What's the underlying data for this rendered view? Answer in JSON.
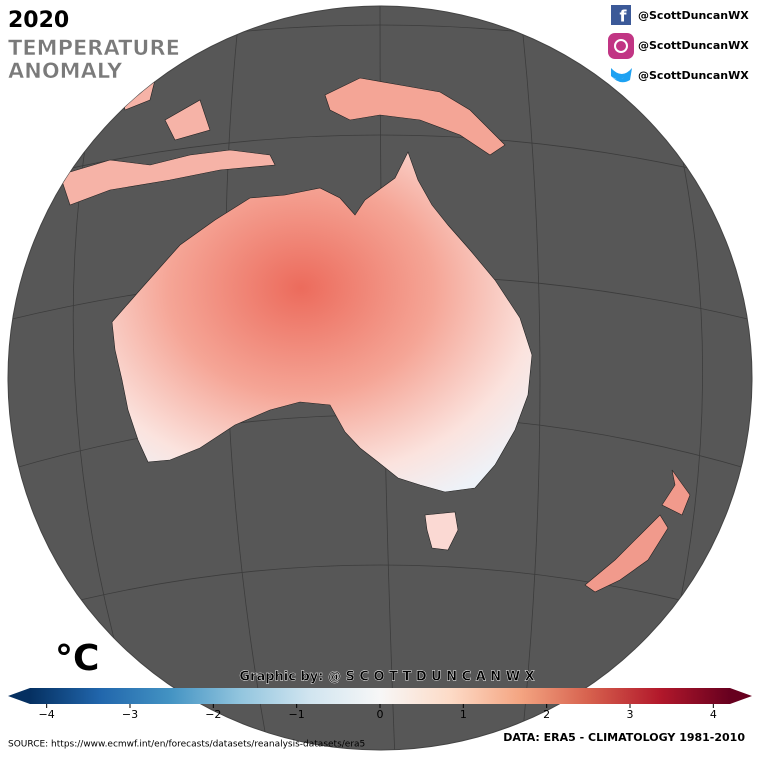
{
  "header": {
    "year": "2020",
    "title_lines": [
      "TEMPERATURE",
      "ANOMALY"
    ]
  },
  "social": [
    {
      "network": "facebook",
      "handle": "@ScottDuncanWX"
    },
    {
      "network": "instagram",
      "handle": "@ScottDuncanWX"
    },
    {
      "network": "twitter",
      "handle": "@ScottDuncanWX"
    }
  ],
  "unit": "°C",
  "credit": "Graphic by: @ S C O T T D U N C A N W X",
  "colorbar": {
    "lim": [
      -4.2,
      4.2
    ],
    "ticks": [
      {
        "value": -4,
        "label": "−4"
      },
      {
        "value": -3,
        "label": "−3"
      },
      {
        "value": -2,
        "label": "−2"
      },
      {
        "value": -1,
        "label": "−1"
      },
      0,
      1,
      2,
      3,
      4
    ],
    "colors": [
      "#053061",
      "#2166ac",
      "#4393c3",
      "#92c5de",
      "#d1e5f0",
      "#f7f7f7",
      "#fddbc7",
      "#f4a582",
      "#d6604d",
      "#b2182b",
      "#67001f"
    ]
  },
  "source": "SOURCE: https://www.ecmwf.int/en/forecasts/datasets/reanalysis-datasets/era5",
  "data_note": "DATA: ERA5 - CLIMATOLOGY 1981-2010"
}
